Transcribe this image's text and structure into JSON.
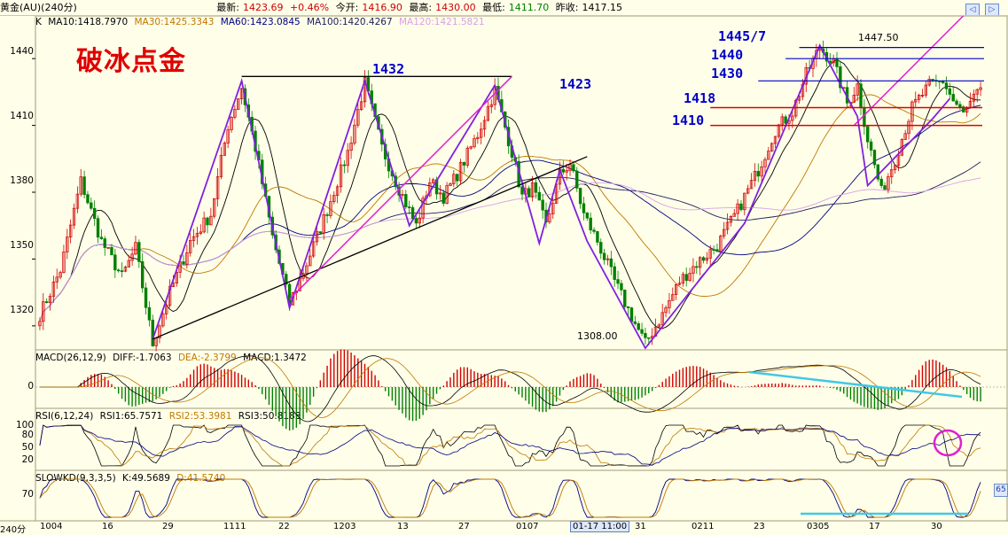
{
  "header": {
    "name": "黄金(AU)(240分)",
    "latest_label": "最新:",
    "latest": "1423.69",
    "change": "+0.46%",
    "open_label": "今开:",
    "open": "1416.90",
    "high_label": "最高:",
    "high": "1430.00",
    "low_label": "最低:",
    "low": "1411.70",
    "prevclose_label": "昨收:",
    "prevclose": "1417.15"
  },
  "colors": {
    "candle_up": "#d00000",
    "candle_down": "#008000",
    "ma10": "#000000",
    "ma30": "#c07800",
    "ma60": "#000080",
    "ma100": "#202060",
    "ma120": "#d8a0e8",
    "pattern": "#8020e0",
    "channel": "#000000",
    "trendline": "#e020d0",
    "level_red": "#e00000",
    "level_blue": "#0000c8",
    "div_line": "#40c8e8"
  },
  "ma_legend": {
    "k": "K",
    "ma10": "MA10:1418.7970",
    "ma30": "MA30:1425.3343",
    "ma60": "MA60:1423.0845",
    "ma100": "MA100:1420.4267",
    "ma120": "MA120:1421.5821"
  },
  "main_annotations": {
    "title": "破冰点金",
    "a1432": "1432",
    "a1423": "1423",
    "a1445": "1445/7",
    "a1440": "1440",
    "a1430": "1430",
    "a1418": "1418",
    "a1410": "1410",
    "a1447": "1447.50",
    "a1308": "1308.00"
  },
  "macd": {
    "title": "MACD(26,12,9)",
    "diff": "DIFF:-1.7063",
    "dea": "DEA:-2.3799",
    "macd": "MACD:1.3472",
    "zero": "0"
  },
  "rsi": {
    "title": "RSI(6,12,24)",
    "rsi1": "RSI1:65.7571",
    "rsi2": "RSI2:53.3981",
    "rsi3": "RSI3:50.8183",
    "ticks": [
      "100",
      "80",
      "50",
      "20"
    ]
  },
  "slowkd": {
    "title": "SLOWKD(9,3,3,5)",
    "k": "K:49.5689",
    "d": "D:41.5740",
    "tick": "70",
    "badge": "65"
  },
  "xaxis": {
    "period": "240分",
    "labels": [
      "1004",
      "16",
      "29",
      "1111",
      "22",
      "1203",
      "13",
      "27",
      "0107",
      "01-17 11:00",
      "31",
      "0211",
      "23",
      "0305",
      "17",
      "30"
    ]
  },
  "chart_data": {
    "type": "candlestick",
    "ylim": [
      1310,
      1452
    ],
    "yticks": [
      1440,
      1410,
      1380,
      1350,
      1320
    ],
    "anchors": [
      [
        0,
        1325
      ],
      [
        6,
        1345
      ],
      [
        12,
        1385
      ],
      [
        18,
        1358
      ],
      [
        24,
        1342
      ],
      [
        28,
        1355
      ],
      [
        33,
        1312
      ],
      [
        38,
        1335
      ],
      [
        44,
        1358
      ],
      [
        50,
        1370
      ],
      [
        55,
        1410
      ],
      [
        59,
        1427
      ],
      [
        63,
        1400
      ],
      [
        68,
        1360
      ],
      [
        73,
        1330
      ],
      [
        78,
        1348
      ],
      [
        84,
        1372
      ],
      [
        90,
        1398
      ],
      [
        95,
        1429
      ],
      [
        100,
        1400
      ],
      [
        104,
        1385
      ],
      [
        110,
        1365
      ],
      [
        114,
        1385
      ],
      [
        118,
        1378
      ],
      [
        122,
        1388
      ],
      [
        128,
        1406
      ],
      [
        133,
        1426
      ],
      [
        138,
        1398
      ],
      [
        141,
        1378
      ],
      [
        144,
        1382
      ],
      [
        148,
        1365
      ],
      [
        152,
        1388
      ],
      [
        155,
        1393
      ],
      [
        159,
        1370
      ],
      [
        163,
        1358
      ],
      [
        168,
        1340
      ],
      [
        173,
        1324
      ],
      [
        177,
        1312
      ],
      [
        182,
        1325
      ],
      [
        187,
        1340
      ],
      [
        192,
        1348
      ],
      [
        198,
        1356
      ],
      [
        204,
        1372
      ],
      [
        210,
        1390
      ],
      [
        215,
        1408
      ],
      [
        220,
        1416
      ],
      [
        224,
        1433
      ],
      [
        228,
        1445
      ],
      [
        232,
        1438
      ],
      [
        236,
        1420
      ],
      [
        239,
        1428
      ],
      [
        242,
        1404
      ],
      [
        246,
        1380
      ],
      [
        250,
        1395
      ],
      [
        255,
        1418
      ],
      [
        260,
        1428
      ],
      [
        264,
        1430
      ],
      [
        267,
        1421
      ],
      [
        270,
        1415
      ],
      [
        274,
        1424
      ]
    ],
    "zigzag_pattern": [
      [
        33,
        1314
      ],
      [
        59,
        1430
      ],
      [
        73,
        1328
      ],
      [
        95,
        1430
      ],
      [
        108,
        1365
      ],
      [
        133,
        1428
      ],
      [
        146,
        1357
      ],
      [
        152,
        1390
      ],
      [
        160,
        1358
      ],
      [
        177,
        1310
      ],
      [
        206,
        1366
      ],
      [
        228,
        1446
      ],
      [
        239,
        1414
      ],
      [
        242,
        1383
      ],
      [
        261,
        1413
      ],
      [
        266,
        1422
      ]
    ],
    "channel_top": [
      [
        59,
        1432
      ],
      [
        138,
        1432
      ]
    ],
    "channel_bottom": [
      [
        33,
        1314
      ],
      [
        160,
        1396
      ]
    ],
    "trend_up": [
      [
        73,
        1332
      ],
      [
        138,
        1432
      ]
    ],
    "trend_up2": [
      [
        238,
        1410
      ],
      [
        275,
        1467
      ]
    ],
    "levels_red": [
      1418,
      1410
    ],
    "levels_blue": [
      1445,
      1440,
      1430
    ],
    "low_mark": 1308.0,
    "high_mark": 1447.5,
    "n": 276
  }
}
